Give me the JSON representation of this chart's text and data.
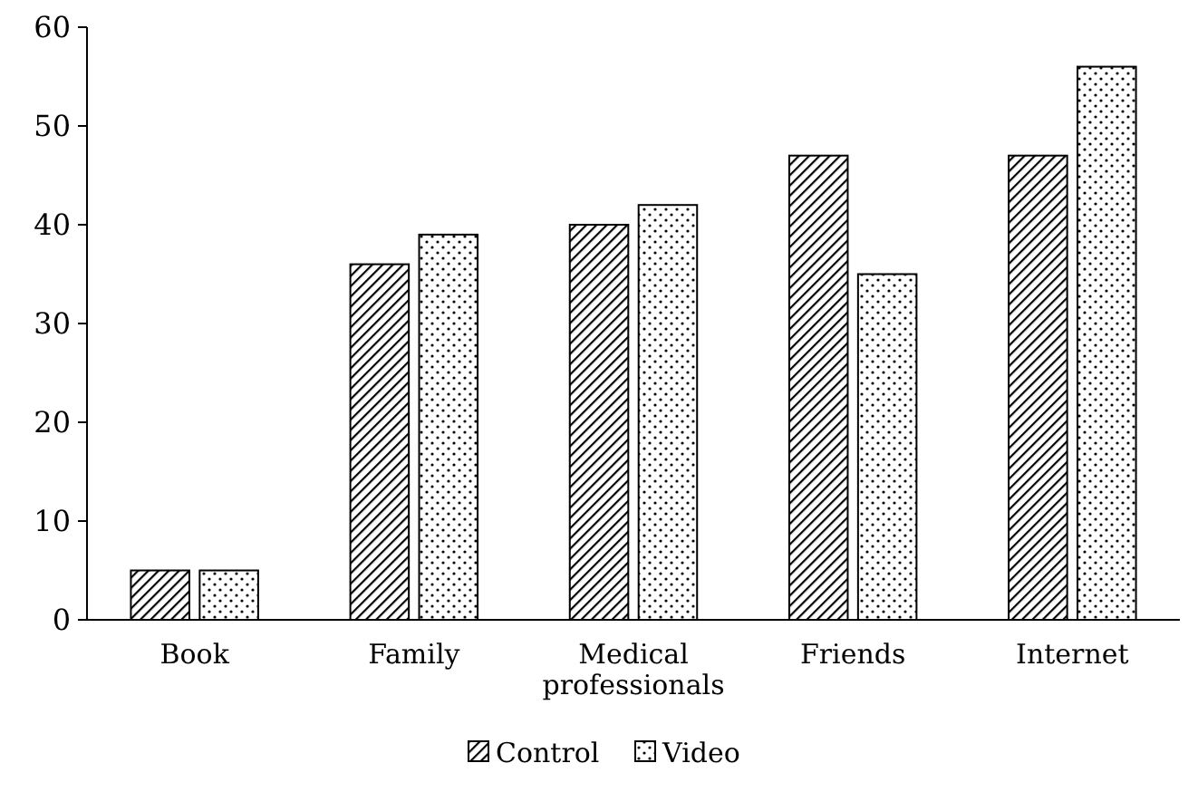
{
  "chart_data": {
    "type": "bar",
    "categories": [
      "Book",
      "Family",
      "Medical professionals",
      "Friends",
      "Internet"
    ],
    "series": [
      {
        "name": "Control",
        "color": "#000000",
        "values": [
          5,
          36,
          40,
          47,
          47
        ]
      },
      {
        "name": "Video",
        "color": "#000000",
        "values": [
          5,
          39,
          42,
          35,
          56
        ]
      }
    ],
    "ylim": [
      0,
      60
    ],
    "yticks": [
      0,
      10,
      20,
      30,
      40,
      50,
      60
    ],
    "grid": false,
    "legend": "bottom"
  }
}
